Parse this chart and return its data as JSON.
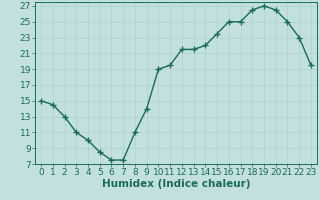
{
  "x": [
    0,
    1,
    2,
    3,
    4,
    5,
    6,
    7,
    8,
    9,
    10,
    11,
    12,
    13,
    14,
    15,
    16,
    17,
    18,
    19,
    20,
    21,
    22,
    23
  ],
  "y": [
    15,
    14.5,
    13,
    11,
    10,
    8.5,
    7.5,
    7.5,
    11,
    14,
    19,
    19.5,
    21.5,
    21.5,
    22,
    23.5,
    25,
    25,
    26.5,
    27,
    26.5,
    25,
    23,
    19.5
  ],
  "line_color": "#1a6b5a",
  "bg_color": "#c2e0e0",
  "grid_color": "#b0d0d0",
  "xlabel": "Humidex (Indice chaleur)",
  "xlim": [
    -0.5,
    23.5
  ],
  "ylim": [
    7,
    27.5
  ],
  "yticks": [
    7,
    9,
    11,
    13,
    15,
    17,
    19,
    21,
    23,
    25,
    27
  ],
  "xticks": [
    0,
    1,
    2,
    3,
    4,
    5,
    6,
    7,
    8,
    9,
    10,
    11,
    12,
    13,
    14,
    15,
    16,
    17,
    18,
    19,
    20,
    21,
    22,
    23
  ],
  "marker": "+",
  "linewidth": 1.0,
  "markersize": 4,
  "tick_fontsize": 6.5,
  "xlabel_fontsize": 7.5
}
